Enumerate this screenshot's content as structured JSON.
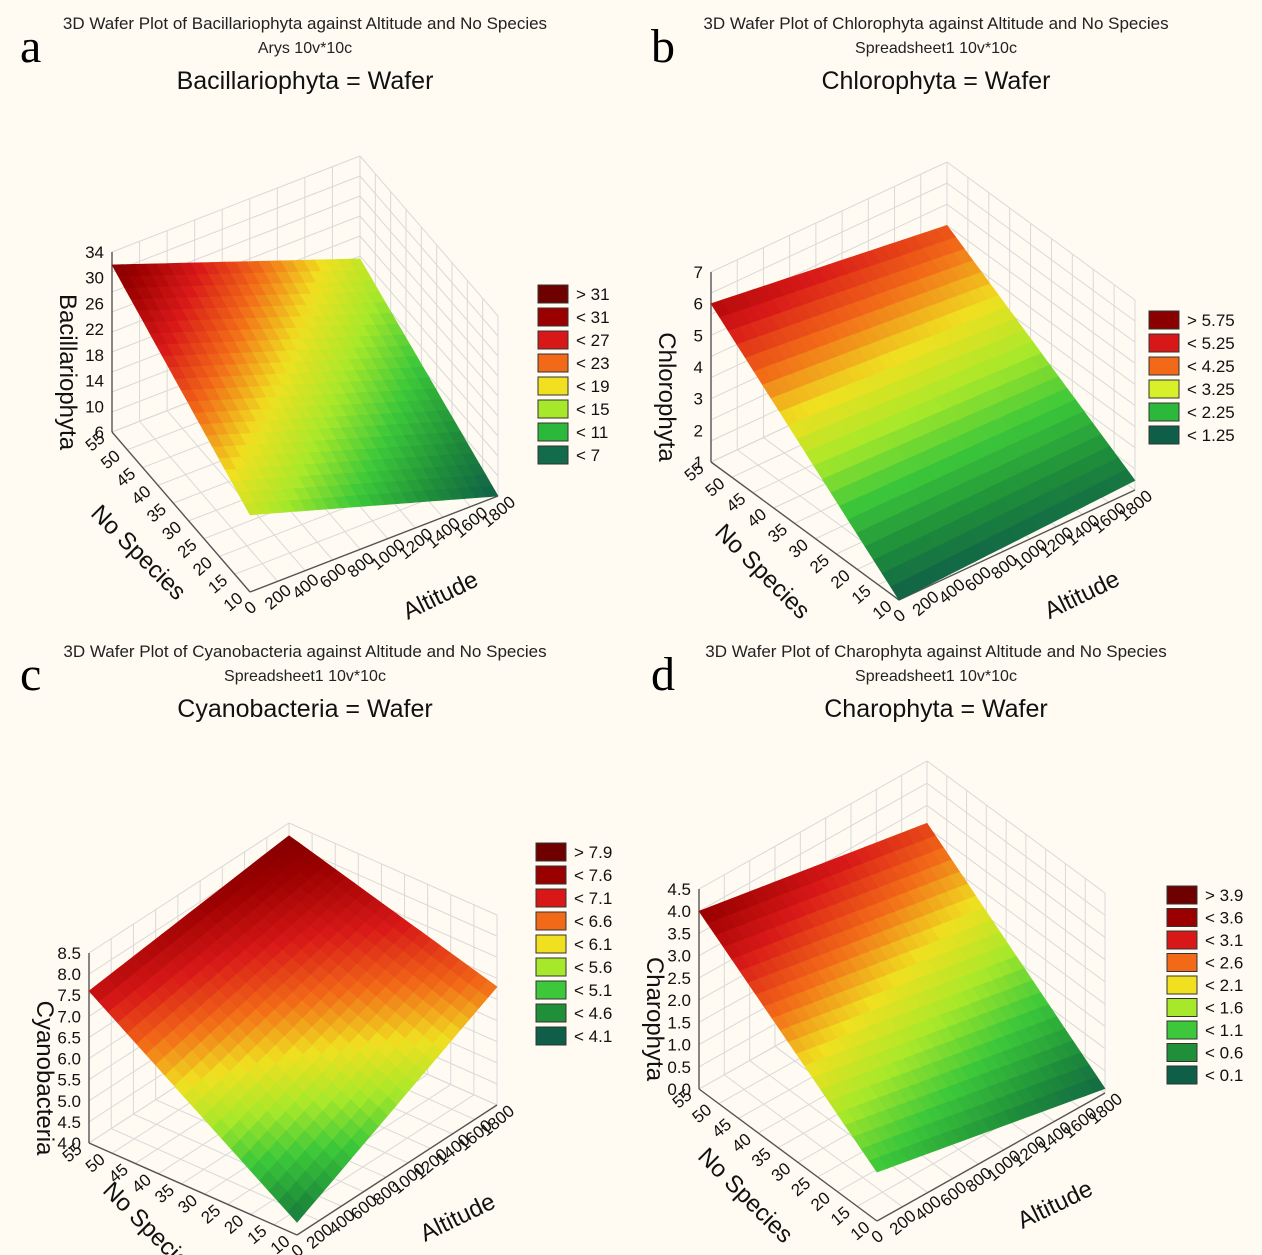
{
  "panels": [
    {
      "letter": "a",
      "title": "3D Wafer Plot of Bacillariophyta against Altitude and No Species",
      "subtitle": "Arys 10v*10c",
      "heading": "Bacillariophyta = Wafer"
    },
    {
      "letter": "b",
      "title": "3D Wafer Plot of Chlorophyta against Altitude and No Species",
      "subtitle": "Spreadsheet1 10v*10c",
      "heading": "Chlorophyta = Wafer"
    },
    {
      "letter": "c",
      "title": "3D Wafer Plot of Cyanobacteria against Altitude and No Species",
      "subtitle": "Spreadsheet1 10v*10c",
      "heading": "Cyanobacteria = Wafer"
    },
    {
      "letter": "d",
      "title": "3D Wafer Plot of Charophyta against Altitude and No Species",
      "subtitle": "Spreadsheet1 10v*10c",
      "heading": "Charophyta = Wafer"
    }
  ],
  "chart_data": [
    {
      "type": "surface",
      "title": "Bacillariophyta = Wafer",
      "xlabel": "Altitude",
      "ylabel": "No Species",
      "zlabel": "Bacillariophyta",
      "x_ticks": [
        "0",
        "200",
        "400",
        "600",
        "800",
        "1000",
        "1200",
        "1400",
        "1600",
        "1800"
      ],
      "y_ticks": [
        "10",
        "15",
        "20",
        "25",
        "30",
        "35",
        "40",
        "45",
        "50",
        "55"
      ],
      "z_ticks": [
        "6",
        "10",
        "14",
        "18",
        "22",
        "26",
        "30",
        "34"
      ],
      "zlim": [
        6,
        34
      ],
      "corners": [
        {
          "x": 0,
          "y": 55,
          "z": 32
        },
        {
          "x": 1800,
          "y": 55,
          "z": 18
        },
        {
          "x": 1800,
          "y": 10,
          "z": 6
        },
        {
          "x": 0,
          "y": 10,
          "z": 18
        }
      ],
      "legend": [
        "> 31",
        "< 31",
        "< 27",
        "< 23",
        "< 19",
        "< 15",
        "< 11",
        "< 7"
      ],
      "legend_colors": [
        "#6e0000",
        "#9a0000",
        "#d81818",
        "#f26a18",
        "#f0e020",
        "#a8e82a",
        "#2cb83a",
        "#126b4a"
      ]
    },
    {
      "type": "surface",
      "title": "Chlorophyta = Wafer",
      "xlabel": "Altitude",
      "ylabel": "No Species",
      "zlabel": "Chlorophyta",
      "x_ticks": [
        "0",
        "200",
        "400",
        "600",
        "800",
        "1000",
        "1200",
        "1400",
        "1600",
        "1800"
      ],
      "y_ticks": [
        "10",
        "15",
        "20",
        "25",
        "30",
        "35",
        "40",
        "45",
        "50",
        "55"
      ],
      "z_ticks": [
        "1",
        "2",
        "3",
        "4",
        "5",
        "6",
        "7"
      ],
      "zlim": [
        1,
        7
      ],
      "corners": [
        {
          "x": 0,
          "y": 55,
          "z": 6
        },
        {
          "x": 1800,
          "y": 55,
          "z": 5
        },
        {
          "x": 1800,
          "y": 10,
          "z": 1.3
        },
        {
          "x": 0,
          "y": 10,
          "z": 1
        }
      ],
      "legend": [
        "> 5.75",
        "< 5.25",
        "< 4.25",
        "< 3.25",
        "< 2.25",
        "< 1.25"
      ],
      "legend_colors": [
        "#8a0000",
        "#d81818",
        "#f26a18",
        "#d8f02a",
        "#2cb83a",
        "#0f5e48"
      ]
    },
    {
      "type": "surface",
      "title": "Cyanobacteria = Wafer",
      "xlabel": "Altitude",
      "ylabel": "No Species",
      "zlabel": "Cyanobacteria",
      "x_ticks": [
        "0",
        "200",
        "400",
        "600",
        "800",
        "1000",
        "1200",
        "1400",
        "1600",
        "1800"
      ],
      "y_ticks": [
        "10",
        "15",
        "20",
        "25",
        "30",
        "35",
        "40",
        "45",
        "50",
        "55"
      ],
      "z_ticks": [
        "4.0",
        "4.5",
        "5.0",
        "5.5",
        "6.0",
        "6.5",
        "7.0",
        "7.5",
        "8.0",
        "8.5"
      ],
      "zlim": [
        4,
        8.5
      ],
      "corners": [
        {
          "x": 0,
          "y": 55,
          "z": 7.6
        },
        {
          "x": 1800,
          "y": 55,
          "z": 8.2
        },
        {
          "x": 1800,
          "y": 10,
          "z": 6.8
        },
        {
          "x": 0,
          "y": 10,
          "z": 4.3
        }
      ],
      "legend": [
        "> 7.9",
        "< 7.6",
        "< 7.1",
        "< 6.6",
        "< 6.1",
        "< 5.6",
        "< 5.1",
        "< 4.6",
        "< 4.1"
      ],
      "legend_colors": [
        "#6e0000",
        "#9a0000",
        "#d81818",
        "#f26a18",
        "#f0e020",
        "#a8e82a",
        "#3cc83a",
        "#1f8f3a",
        "#0f5e48"
      ]
    },
    {
      "type": "surface",
      "title": "Charophyta = Wafer",
      "xlabel": "Altitude",
      "ylabel": "No Species",
      "zlabel": "Charophyta",
      "x_ticks": [
        "0",
        "200",
        "400",
        "600",
        "800",
        "1000",
        "1200",
        "1400",
        "1600",
        "1800"
      ],
      "y_ticks": [
        "10",
        "15",
        "20",
        "25",
        "30",
        "35",
        "40",
        "45",
        "50",
        "55"
      ],
      "z_ticks": [
        "0.0",
        "0.5",
        "1.0",
        "1.5",
        "2.0",
        "2.5",
        "3.0",
        "3.5",
        "4.0",
        "4.5"
      ],
      "zlim": [
        0,
        4.5
      ],
      "corners": [
        {
          "x": 0,
          "y": 55,
          "z": 4.0
        },
        {
          "x": 1800,
          "y": 55,
          "z": 3.1
        },
        {
          "x": 1800,
          "y": 10,
          "z": 0.1
        },
        {
          "x": 0,
          "y": 10,
          "z": 1.1
        }
      ],
      "legend": [
        "> 3.9",
        "< 3.6",
        "< 3.1",
        "< 2.6",
        "< 2.1",
        "< 1.6",
        "< 1.1",
        "< 0.6",
        "< 0.1"
      ],
      "legend_colors": [
        "#6e0000",
        "#9a0000",
        "#d81818",
        "#f26a18",
        "#f0e020",
        "#a8e82a",
        "#3cc83a",
        "#1f8f3a",
        "#0f5e48"
      ]
    }
  ]
}
